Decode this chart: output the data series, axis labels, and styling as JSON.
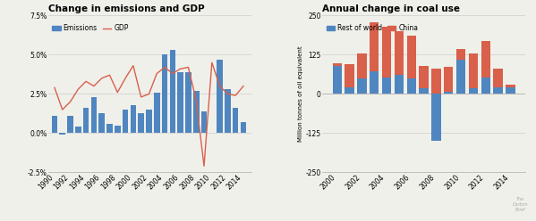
{
  "left_title": "Change in emissions and GDP",
  "right_title": "Annual change in coal use",
  "left_legend": [
    "Emissions",
    "GDP"
  ],
  "right_legend": [
    "Rest of world",
    "China"
  ],
  "emissions_years": [
    1990,
    1991,
    1992,
    1993,
    1994,
    1995,
    1996,
    1997,
    1998,
    1999,
    2000,
    2001,
    2002,
    2003,
    2004,
    2005,
    2006,
    2007,
    2008,
    2009,
    2010,
    2011,
    2012,
    2013,
    2014
  ],
  "emissions_values": [
    1.1,
    -0.1,
    1.1,
    0.4,
    1.6,
    2.3,
    1.3,
    0.6,
    0.5,
    1.5,
    1.8,
    1.3,
    1.5,
    2.6,
    5.0,
    5.3,
    3.9,
    3.9,
    2.7,
    1.4,
    0.05,
    4.7,
    2.8,
    1.6,
    0.7
  ],
  "gdp_values": [
    2.9,
    1.5,
    2.0,
    2.8,
    3.3,
    3.0,
    3.5,
    3.7,
    2.6,
    3.5,
    4.3,
    2.3,
    2.5,
    3.8,
    4.2,
    3.8,
    4.1,
    4.2,
    2.1,
    -2.1,
    4.5,
    3.0,
    2.5,
    2.4,
    3.0
  ],
  "coal_years": [
    2000,
    2001,
    2002,
    2003,
    2004,
    2005,
    2006,
    2007,
    2008,
    2009,
    2010,
    2011,
    2012,
    2013,
    2014
  ],
  "coal_row": [
    88,
    22,
    48,
    72,
    52,
    62,
    50,
    18,
    -148,
    8,
    110,
    18,
    52,
    22,
    22
  ],
  "coal_china": [
    10,
    72,
    80,
    155,
    162,
    138,
    135,
    72,
    82,
    78,
    32,
    112,
    118,
    58,
    8
  ],
  "bar_color_emissions": "#4f86c0",
  "bar_color_row": "#4f86c0",
  "bar_color_china": "#d9604a",
  "line_color_gdp": "#d9604a",
  "bg_color": "#f0f0eb",
  "left_ylim": [
    -2.5,
    7.5
  ],
  "left_yticks": [
    -2.5,
    0.0,
    2.5,
    5.0,
    7.5
  ],
  "right_ylim": [
    -250,
    250
  ],
  "right_yticks": [
    -250,
    -125,
    0,
    125,
    250
  ],
  "right_ylabel": "Million tonnes of oil equivalent",
  "watermark": "The\nCarbon\nBrief"
}
